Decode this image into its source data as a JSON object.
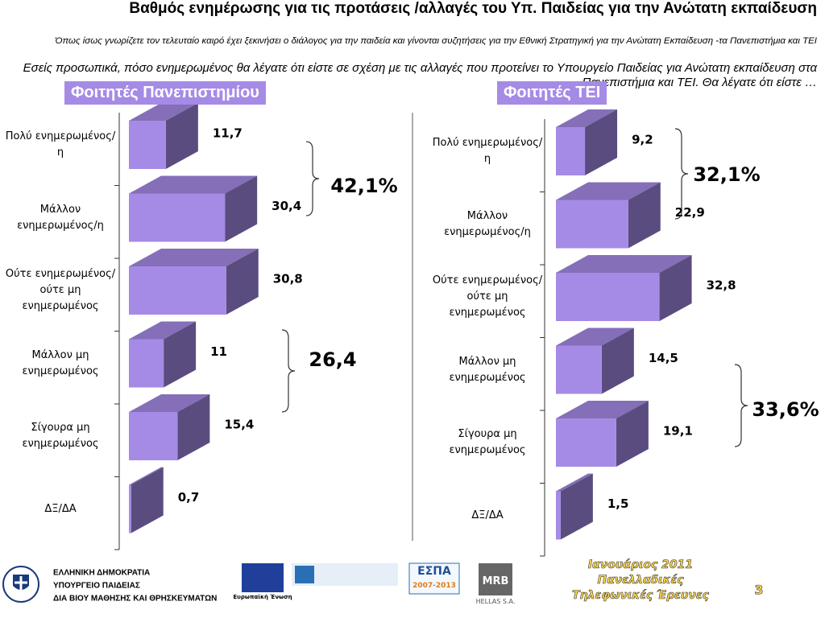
{
  "header": {
    "title": "Βαθμός ενημέρωσης για τις προτάσεις /αλλαγές του Υπ. Παιδείας για την Ανώτατη εκπαίδευση",
    "subtitle": "Όπως ίσως γνωρίζετε τον τελευταίο καιρό έχει ξεκινήσει ο διάλογος για την παιδεία και γίνονται συζητήσεις για την Εθνική Στρατηγική για την Ανώτατη Εκπαίδευση -τα Πανεπιστήμια και ΤΕΙ",
    "question": "Εσείς προσωπικά, πόσο ενημερωμένος θα λέγατε ότι είστε σε σχέση με τις αλλαγές που προτείνει το Υπουργείο Παιδείας για Ανώτατη εκπαίδευση στα Πανεπιστήμια και ΤΕΙ. Θα λέγατε ότι είστε …"
  },
  "chart_data": [
    {
      "type": "bar",
      "title": "Φοιτητές Πανεπιστημίου",
      "categories": [
        "Πολύ ενημερωμένος/η",
        "Μάλλον ενημερωμένος/η",
        "Ούτε ενημερωμένος/ ούτε μη ενημερωμένος",
        "Μάλλον μη ενημερωμένος",
        "Σίγουρα μη ενημερωμένος",
        "ΔΞ/ΔΑ"
      ],
      "values": [
        11.7,
        30.4,
        30.8,
        11,
        15.4,
        0.7
      ],
      "value_labels": [
        "11,7",
        "30,4",
        "30,8",
        "11",
        "15,4",
        "0,7"
      ],
      "color": "#a58be6",
      "annotations": [
        "42,1%",
        "26,4"
      ]
    },
    {
      "type": "bar",
      "title": "Φοιτητές ΤΕΙ",
      "categories": [
        "Πολύ ενημερωμένος/η",
        "Μάλλον ενημερωμένος/η",
        "Ούτε ενημερωμένος/ ούτε μη ενημερωμένος",
        "Μάλλον μη ενημερωμένος",
        "Σίγουρα μη ενημερωμένος",
        "ΔΞ/ΔΑ"
      ],
      "values": [
        9.2,
        22.9,
        32.8,
        14.5,
        19.1,
        1.5
      ],
      "value_labels": [
        "9,2",
        "22,9",
        "32,8",
        "14,5",
        "19,1",
        "1,5"
      ],
      "color": "#a58be6",
      "annotations": [
        "32,1%",
        "33,6%"
      ]
    }
  ],
  "footer": {
    "ministry": [
      "ΕΛΛΗΝΙΚΗ ΔΗΜΟΚΡΑΤΙΑ",
      "ΥΠΟΥΡΓΕΙΟ ΠΑΙΔΕΙΑΣ",
      "ΔΙΑ ΒΙΟΥ ΜΑΘΗΣΗΣ ΚΑΙ ΘΡΗΣΚΕΥΜΑΤΩΝ"
    ],
    "eu": "Ευρωπαϊκή Ένωση",
    "espa": "ΕΣΠΑ",
    "espa_years": "2007-2013",
    "mrb": "MRB",
    "mrb_sub": "HELLAS S.A.",
    "survey": [
      "Ιανουάριος 2011",
      "Πανελλαδικές",
      "Τηλεφωνικές Έρευνες"
    ],
    "page": "3"
  }
}
